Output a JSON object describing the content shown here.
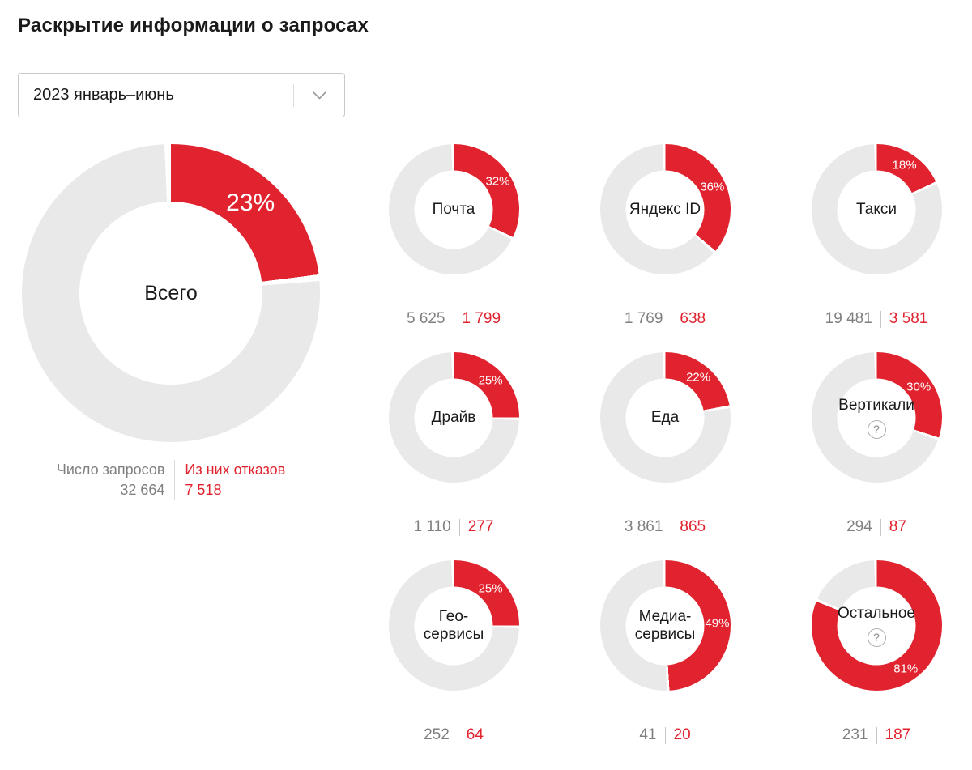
{
  "page": {
    "title": "Раскрытие информации о запросах"
  },
  "filter": {
    "value": "2023 январь–июнь"
  },
  "icons": {
    "help": "?"
  },
  "colors": {
    "red": "#e0232e",
    "ring_gray": "#e9e9e9",
    "gray_text": "#7f7f7f"
  },
  "main_chart": {
    "label": "Всего",
    "percent": 23,
    "percent_label": "23%",
    "help": false,
    "requests_label": "Число запросов",
    "requests_value": "32 664",
    "refusals_label": "Из них отказов",
    "refusals_value": "7 518"
  },
  "charts": [
    {
      "label": "Почта",
      "percent": 32,
      "percent_label": "32%",
      "requests": "5 625",
      "refusals": "1 799",
      "help": false
    },
    {
      "label": "Яндекс ID",
      "percent": 36,
      "percent_label": "36%",
      "requests": "1 769",
      "refusals": "638",
      "help": false
    },
    {
      "label": "Такси",
      "percent": 18,
      "percent_label": "18%",
      "requests": "19 481",
      "refusals": "3 581",
      "help": false
    },
    {
      "label": "Драйв",
      "percent": 25,
      "percent_label": "25%",
      "requests": "1 110",
      "refusals": "277",
      "help": false
    },
    {
      "label": "Еда",
      "percent": 22,
      "percent_label": "22%",
      "requests": "3 861",
      "refusals": "865",
      "help": false
    },
    {
      "label": "Вертикали",
      "percent": 30,
      "percent_label": "30%",
      "requests": "294",
      "refusals": "87",
      "help": true
    },
    {
      "label": "Гео-\nсервисы",
      "percent": 25,
      "percent_label": "25%",
      "requests": "252",
      "refusals": "64",
      "help": false
    },
    {
      "label": "Медиа-\nсервисы",
      "percent": 49,
      "percent_label": "49%",
      "requests": "41",
      "refusals": "20",
      "help": false
    },
    {
      "label": "Остальное",
      "percent": 81,
      "percent_label": "81%",
      "requests": "231",
      "refusals": "187",
      "help": true
    }
  ],
  "chart_data": {
    "type": "pie",
    "title": "Раскрытие информации о запросах",
    "period": "2023 январь–июнь",
    "legend": [
      "Число запросов",
      "Из них отказов"
    ],
    "charts": [
      {
        "label": "Всего",
        "requests": 32664,
        "refusals": 7518,
        "refusal_percent": 23
      },
      {
        "label": "Почта",
        "requests": 5625,
        "refusals": 1799,
        "refusal_percent": 32
      },
      {
        "label": "Яндекс ID",
        "requests": 1769,
        "refusals": 638,
        "refusal_percent": 36
      },
      {
        "label": "Такси",
        "requests": 19481,
        "refusals": 3581,
        "refusal_percent": 18
      },
      {
        "label": "Драйв",
        "requests": 1110,
        "refusals": 277,
        "refusal_percent": 25
      },
      {
        "label": "Еда",
        "requests": 3861,
        "refusals": 865,
        "refusal_percent": 22
      },
      {
        "label": "Вертикали",
        "requests": 294,
        "refusals": 87,
        "refusal_percent": 30
      },
      {
        "label": "Гео-сервисы",
        "requests": 252,
        "refusals": 64,
        "refusal_percent": 25
      },
      {
        "label": "Медиа-сервисы",
        "requests": 41,
        "refusals": 20,
        "refusal_percent": 49
      },
      {
        "label": "Остальное",
        "requests": 231,
        "refusals": 187,
        "refusal_percent": 81
      }
    ]
  }
}
